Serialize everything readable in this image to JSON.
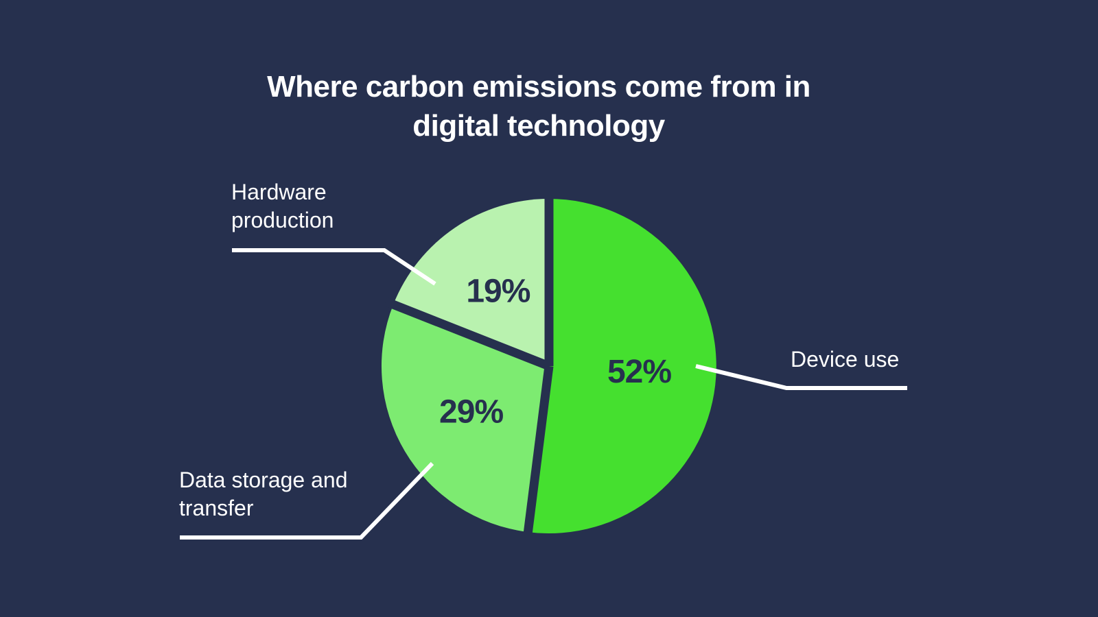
{
  "title": {
    "line1": "Where carbon emissions come from in",
    "line2": "digital technology"
  },
  "chart_data": {
    "type": "pie",
    "title": "Where carbon emissions come from in digital technology",
    "direction": "clockwise",
    "start_angle_deg": 0,
    "legend_position": "callout-labels",
    "slices": [
      {
        "label": "Device use",
        "value": 52,
        "display": "52%",
        "color": "#45E02F"
      },
      {
        "label": "Data storage and transfer",
        "value": 29,
        "display": "29%",
        "color": "#7DEB71"
      },
      {
        "label": "Hardware production",
        "value": 19,
        "display": "19%",
        "color": "#B9F2AF"
      }
    ],
    "value_label_color": "#26304E",
    "gap_color": "#26304E"
  },
  "colors": {
    "background": "#26304E",
    "title_text": "#FFFFFF",
    "callout_text": "#FFFFFF",
    "leader_line": "#FFFFFF"
  }
}
